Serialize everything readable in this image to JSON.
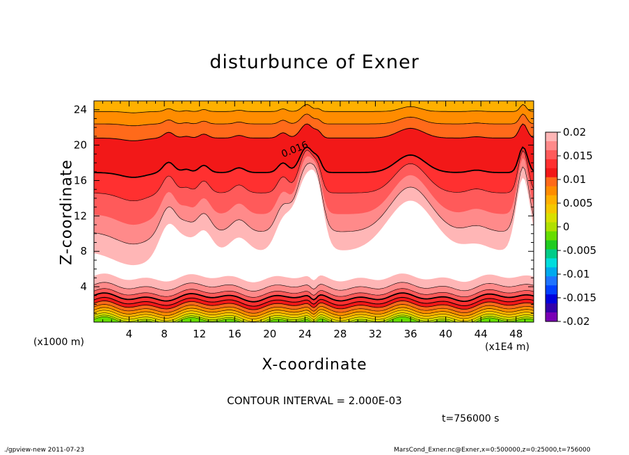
{
  "chart_data": {
    "type": "contour",
    "title": "disturbunce of Exner",
    "xlabel": "X-coordinate",
    "ylabel": "Z-coordinate",
    "x_unit_left": "(x1000 m)",
    "x_unit_right": "(x1E4 m)",
    "xlim": [
      0,
      50
    ],
    "ylim": [
      0,
      25
    ],
    "x_ticks": [
      "4",
      "8",
      "12",
      "16",
      "20",
      "24",
      "28",
      "32",
      "36",
      "40",
      "44",
      "48"
    ],
    "y_ticks": [
      "4",
      "8",
      "12",
      "16",
      "20",
      "24"
    ],
    "colorbar": {
      "labels": [
        "0.02",
        "0.015",
        "0.01",
        "0.005",
        "0",
        "-0.005",
        "-0.01",
        "-0.015",
        "-0.02"
      ],
      "colors_top_to_bottom": [
        "#ffb6b6",
        "#ff8a8a",
        "#ff5a5a",
        "#ff3030",
        "#f21818",
        "#ff6a1a",
        "#ff8c00",
        "#ffb000",
        "#f5c800",
        "#d8e000",
        "#b0e000",
        "#66dd00",
        "#20cc20",
        "#00cc88",
        "#00dddd",
        "#00aaee",
        "#1f74ff",
        "#0040ff",
        "#0000dd",
        "#3300aa",
        "#7a00b4"
      ],
      "colors": {
        "max": "#ffb6b6",
        "mid": "#ff3030",
        "min": "#7a00b4"
      }
    },
    "contour_label": "0.016",
    "contour_interval": "CONTOUR INTERVAL = 2.000E-03"
  },
  "time_label": "t=756000 s",
  "footer": {
    "left": "./gpview-new   2011-07-23",
    "right": "MarsCond_Exner.nc@Exner,x=0:500000,z=0:25000,t=756000"
  }
}
